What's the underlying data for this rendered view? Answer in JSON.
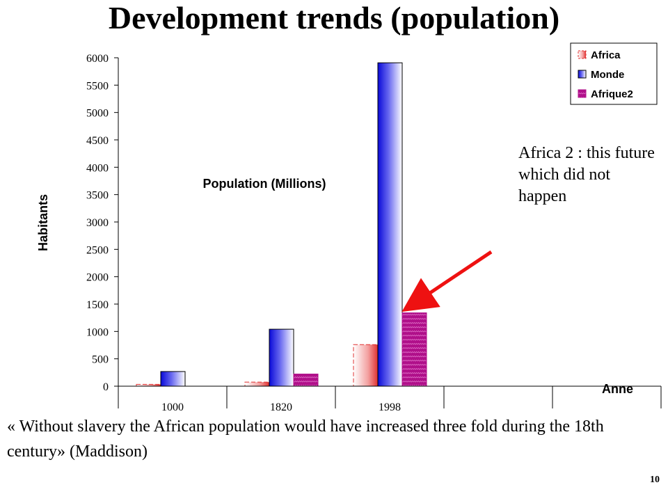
{
  "slide": {
    "title": "Development trends (population)",
    "annotation": "Africa 2 : this future which did not happen",
    "quote": "« Without slavery the African population would have increased three fold during the 18th century» (Maddison)",
    "slide_number": "10"
  },
  "colors": {
    "africa": "#e03030",
    "monde": "#1010e0",
    "afrique2": "#b0108a",
    "arrow": "#ee1111"
  },
  "chart_data": {
    "type": "bar",
    "title": "Population (Millions)",
    "xlabel": "Anne",
    "ylabel": "Habitants",
    "categories": [
      "1000",
      "1820",
      "1998",
      "",
      ""
    ],
    "ylim": [
      0,
      6000
    ],
    "yticks": [
      0,
      500,
      1000,
      1500,
      2000,
      2500,
      3000,
      3500,
      4000,
      4500,
      5000,
      5500,
      6000
    ],
    "grid": false,
    "legend_position": "top-right",
    "series": [
      {
        "name": "Africa",
        "values": [
          33,
          74,
          760,
          null,
          null
        ]
      },
      {
        "name": "Monde",
        "values": [
          268,
          1041,
          5908,
          null,
          null
        ]
      },
      {
        "name": "Afrique2",
        "values": [
          null,
          222,
          1340,
          null,
          null
        ]
      }
    ]
  }
}
